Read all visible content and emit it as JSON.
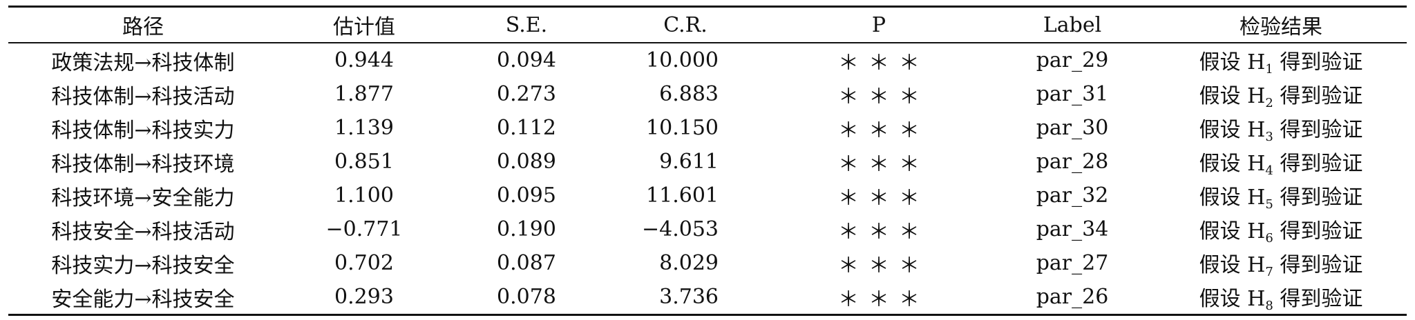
{
  "table": {
    "headers": [
      "路径",
      "估计值",
      "S.E.",
      "C.R.",
      "P",
      "Label",
      "检验结果"
    ],
    "rows": [
      {
        "path": "政策法规→科技体制",
        "estimate": "0.944",
        "se": "0.094",
        "cr": "10.000",
        "p": "＊＊＊",
        "label": "par_29",
        "result_pre": "假设 H",
        "result_sub": "1",
        "result_post": " 得到验证"
      },
      {
        "path": "科技体制→科技活动",
        "estimate": "1.877",
        "se": "0.273",
        "cr": "6.883",
        "p": "＊＊＊",
        "label": "par_31",
        "result_pre": "假设 H",
        "result_sub": "2",
        "result_post": " 得到验证"
      },
      {
        "path": "科技体制→科技实力",
        "estimate": "1.139",
        "se": "0.112",
        "cr": "10.150",
        "p": "＊＊＊",
        "label": "par_30",
        "result_pre": "假设 H",
        "result_sub": "3",
        "result_post": " 得到验证"
      },
      {
        "path": "科技体制→科技环境",
        "estimate": "0.851",
        "se": "0.089",
        "cr": "9.611",
        "p": "＊＊＊",
        "label": "par_28",
        "result_pre": "假设 H",
        "result_sub": "4",
        "result_post": " 得到验证"
      },
      {
        "path": "科技环境→安全能力",
        "estimate": "1.100",
        "se": "0.095",
        "cr": "11.601",
        "p": "＊＊＊",
        "label": "par_32",
        "result_pre": "假设 H",
        "result_sub": "5",
        "result_post": " 得到验证"
      },
      {
        "path": "科技安全→科技活动",
        "estimate": "−0.771",
        "se": "0.190",
        "cr": "−4.053",
        "p": "＊＊＊",
        "label": "par_34",
        "result_pre": "假设 H",
        "result_sub": "6",
        "result_post": " 得到验证"
      },
      {
        "path": "科技实力→科技安全",
        "estimate": "0.702",
        "se": "0.087",
        "cr": "8.029",
        "p": "＊＊＊",
        "label": "par_27",
        "result_pre": "假设 H",
        "result_sub": "7",
        "result_post": " 得到验证"
      },
      {
        "path": "安全能力→科技安全",
        "estimate": "0.293",
        "se": "0.078",
        "cr": "3.736",
        "p": "＊＊＊",
        "label": "par_26",
        "result_pre": "假设 H",
        "result_sub": "8",
        "result_post": " 得到验证"
      }
    ]
  }
}
